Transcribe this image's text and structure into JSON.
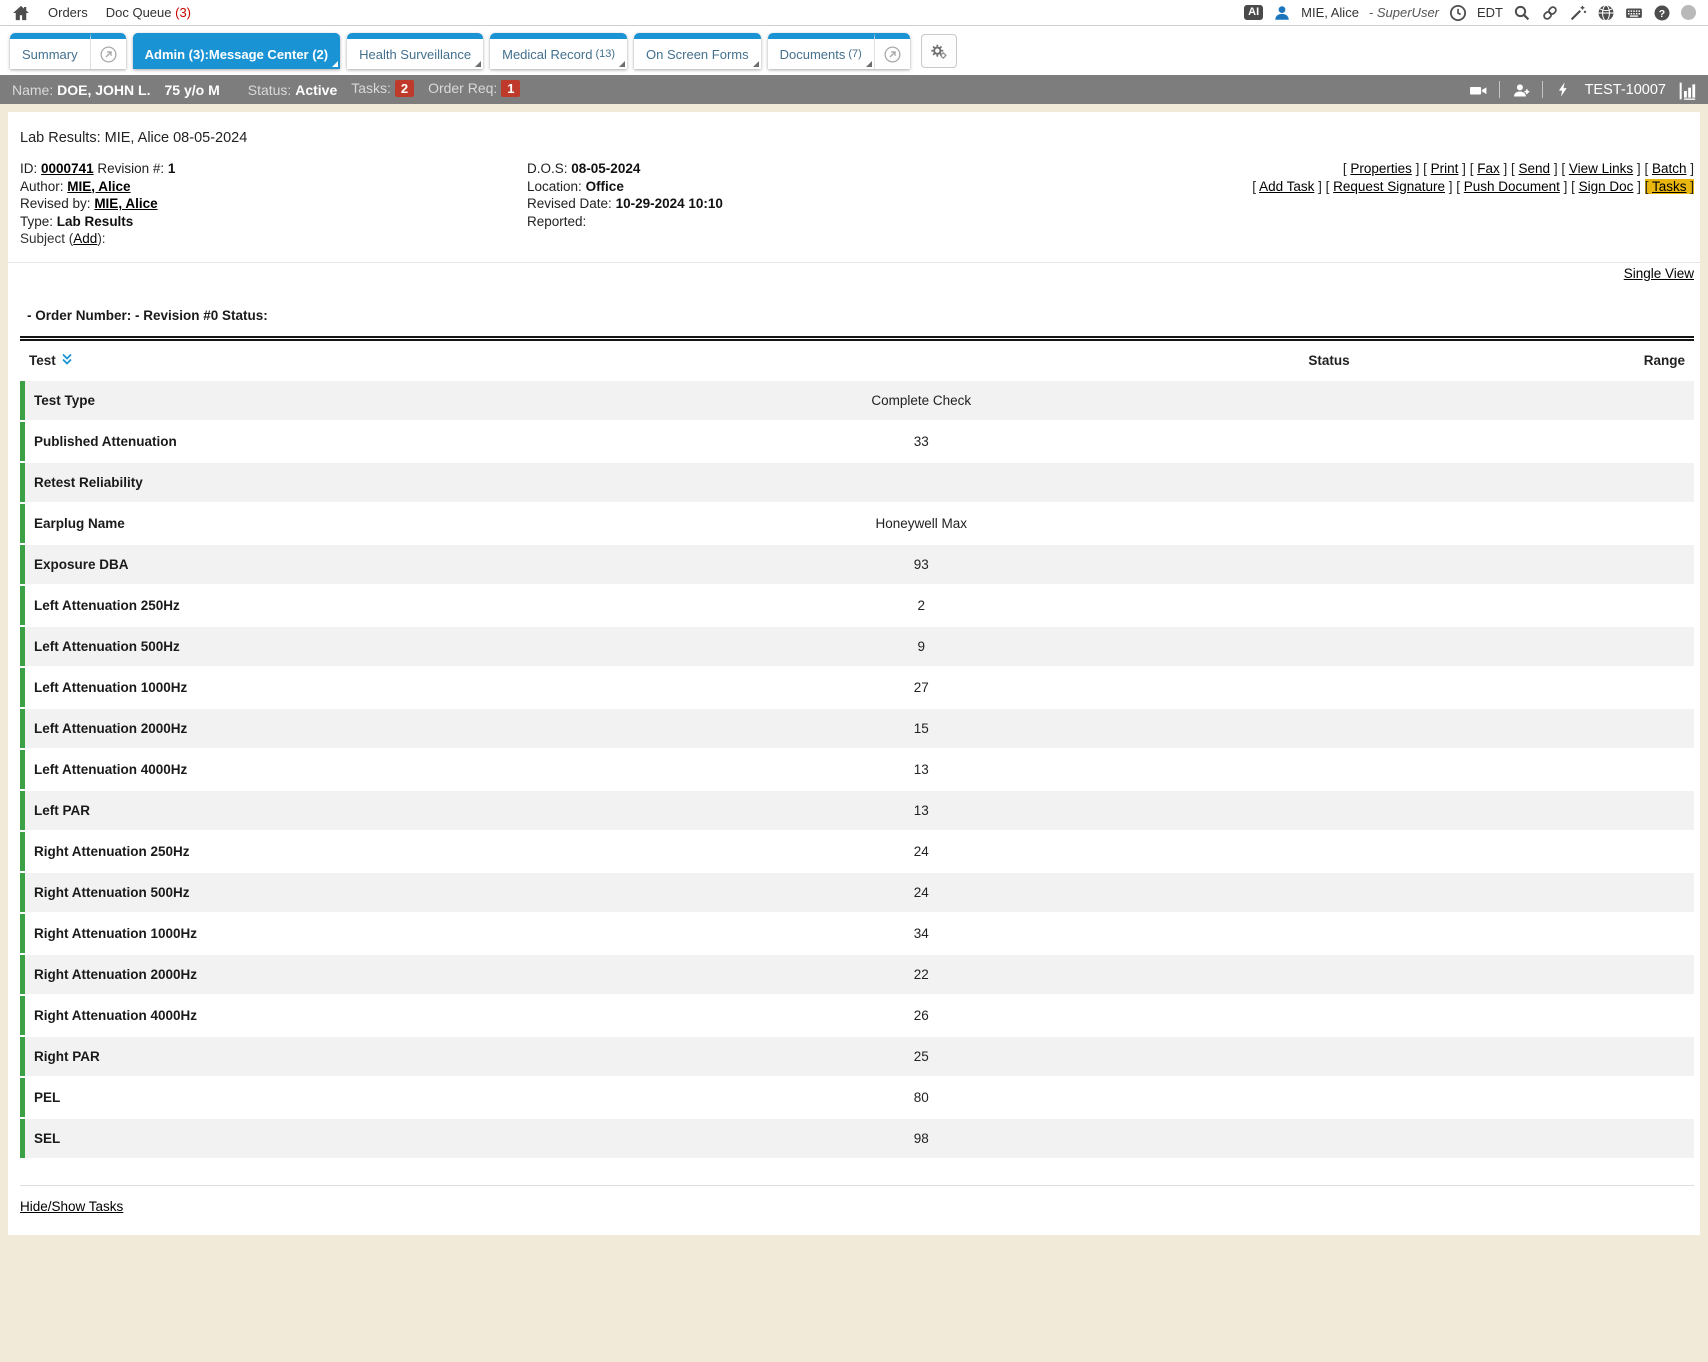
{
  "topbar": {
    "nav": [
      {
        "label": "Orders"
      },
      {
        "label": "Doc Queue",
        "count": "(3)"
      }
    ],
    "ai_badge": "AI",
    "user_name": "MIE, Alice",
    "user_role": "- SuperUser",
    "timezone": "EDT"
  },
  "tabs": [
    {
      "label": "Summary"
    },
    {
      "label": "Admin (3):Message Center (2)",
      "active": true
    },
    {
      "label": "Health Surveillance"
    },
    {
      "label": "Medical Record",
      "count": "(13)"
    },
    {
      "label": "On Screen Forms"
    },
    {
      "label": "Documents",
      "count": "(7)"
    }
  ],
  "patient": {
    "name_label": "Name:",
    "name": "DOE, JOHN L.",
    "age_sex": "75 y/o M",
    "status_label": "Status:",
    "status": "Active",
    "tasks_label": "Tasks:",
    "tasks_count": "2",
    "order_req_label": "Order Req:",
    "order_req_count": "1",
    "station_id": "TEST-10007"
  },
  "document": {
    "title": "Lab Results: MIE, Alice 08-05-2024",
    "id_label": "ID:",
    "id": "0000741",
    "revision_label": "Revision #:",
    "revision": "1",
    "author_label": "Author:",
    "author": "MIE, Alice",
    "revised_by_label": "Revised by:",
    "revised_by": "MIE, Alice",
    "type_label": "Type:",
    "type": "Lab Results",
    "subject_prefix": "Subject (",
    "subject_add": "Add",
    "subject_suffix": "):",
    "dos_label": "D.O.S:",
    "dos": "08-05-2024",
    "location_label": "Location:",
    "location": "Office",
    "revised_date_label": "Revised Date:",
    "revised_date": "10-29-2024 10:10",
    "reported_label": "Reported:",
    "actions_row1": [
      "Properties",
      "Print",
      "Fax",
      "Send",
      "View Links",
      "Batch"
    ],
    "actions_row2": [
      "Add Task",
      "Request Signature",
      "Push Document",
      "Sign Doc",
      "Tasks"
    ],
    "highlighted_action": "Tasks",
    "single_view": "Single View",
    "order_line": "- Order Number: - Revision #0 Status:"
  },
  "results_table": {
    "columns": {
      "test": "Test",
      "status": "Status",
      "range": "Range"
    },
    "rows": [
      {
        "test": "Test Type",
        "value": "Complete Check",
        "status": "",
        "range": ""
      },
      {
        "test": "Published Attenuation",
        "value": "33",
        "status": "",
        "range": ""
      },
      {
        "test": "Retest Reliability",
        "value": "",
        "status": "",
        "range": ""
      },
      {
        "test": "Earplug Name",
        "value": "Honeywell Max",
        "status": "",
        "range": ""
      },
      {
        "test": "Exposure DBA",
        "value": "93",
        "status": "",
        "range": ""
      },
      {
        "test": "Left Attenuation 250Hz",
        "value": "2",
        "status": "",
        "range": ""
      },
      {
        "test": "Left Attenuation 500Hz",
        "value": "9",
        "status": "",
        "range": ""
      },
      {
        "test": "Left Attenuation 1000Hz",
        "value": "27",
        "status": "",
        "range": ""
      },
      {
        "test": "Left Attenuation 2000Hz",
        "value": "15",
        "status": "",
        "range": ""
      },
      {
        "test": "Left Attenuation 4000Hz",
        "value": "13",
        "status": "",
        "range": ""
      },
      {
        "test": "Left PAR",
        "value": "13",
        "status": "",
        "range": ""
      },
      {
        "test": "Right Attenuation 250Hz",
        "value": "24",
        "status": "",
        "range": ""
      },
      {
        "test": "Right Attenuation 500Hz",
        "value": "24",
        "status": "",
        "range": ""
      },
      {
        "test": "Right Attenuation 1000Hz",
        "value": "34",
        "status": "",
        "range": ""
      },
      {
        "test": "Right Attenuation 2000Hz",
        "value": "22",
        "status": "",
        "range": ""
      },
      {
        "test": "Right Attenuation 4000Hz",
        "value": "26",
        "status": "",
        "range": ""
      },
      {
        "test": "Right PAR",
        "value": "25",
        "status": "",
        "range": ""
      },
      {
        "test": "PEL",
        "value": "80",
        "status": "",
        "range": ""
      },
      {
        "test": "SEL",
        "value": "98",
        "status": "",
        "range": ""
      }
    ]
  },
  "footer": {
    "hide_show_tasks": "Hide/Show Tasks"
  },
  "colors": {
    "accent_blue": "#1a93d5",
    "badge_red": "#bf3a2a",
    "nav_count_red": "#cc0000",
    "highlight_yellow": "#e9b60f",
    "row_green": "#3ca044",
    "page_beige": "#f1ead9",
    "patient_bar_gray": "#7d7d7d",
    "row_alt_gray": "#f2f2f2"
  }
}
